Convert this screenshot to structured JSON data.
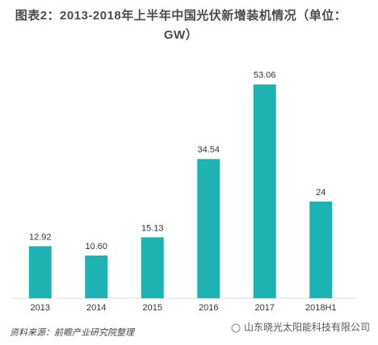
{
  "chart_data": {
    "type": "bar",
    "title": "图表2：2013-2018年上半年中国光伏新增装机情况（单位：GW）",
    "categories": [
      "2013",
      "2014",
      "2015",
      "2016",
      "2017",
      "2018H1"
    ],
    "values": [
      12.92,
      10.6,
      15.13,
      34.54,
      53.06,
      24
    ],
    "value_labels": [
      "12.92",
      "10.60",
      "15.13",
      "34.54",
      "53.06",
      "24"
    ],
    "color": "#1db3b3",
    "ylim": [
      0,
      60
    ],
    "source": "资料来源：前瞻产业研究院整理",
    "watermark": "山东晓光太阳能科技有限公司"
  }
}
